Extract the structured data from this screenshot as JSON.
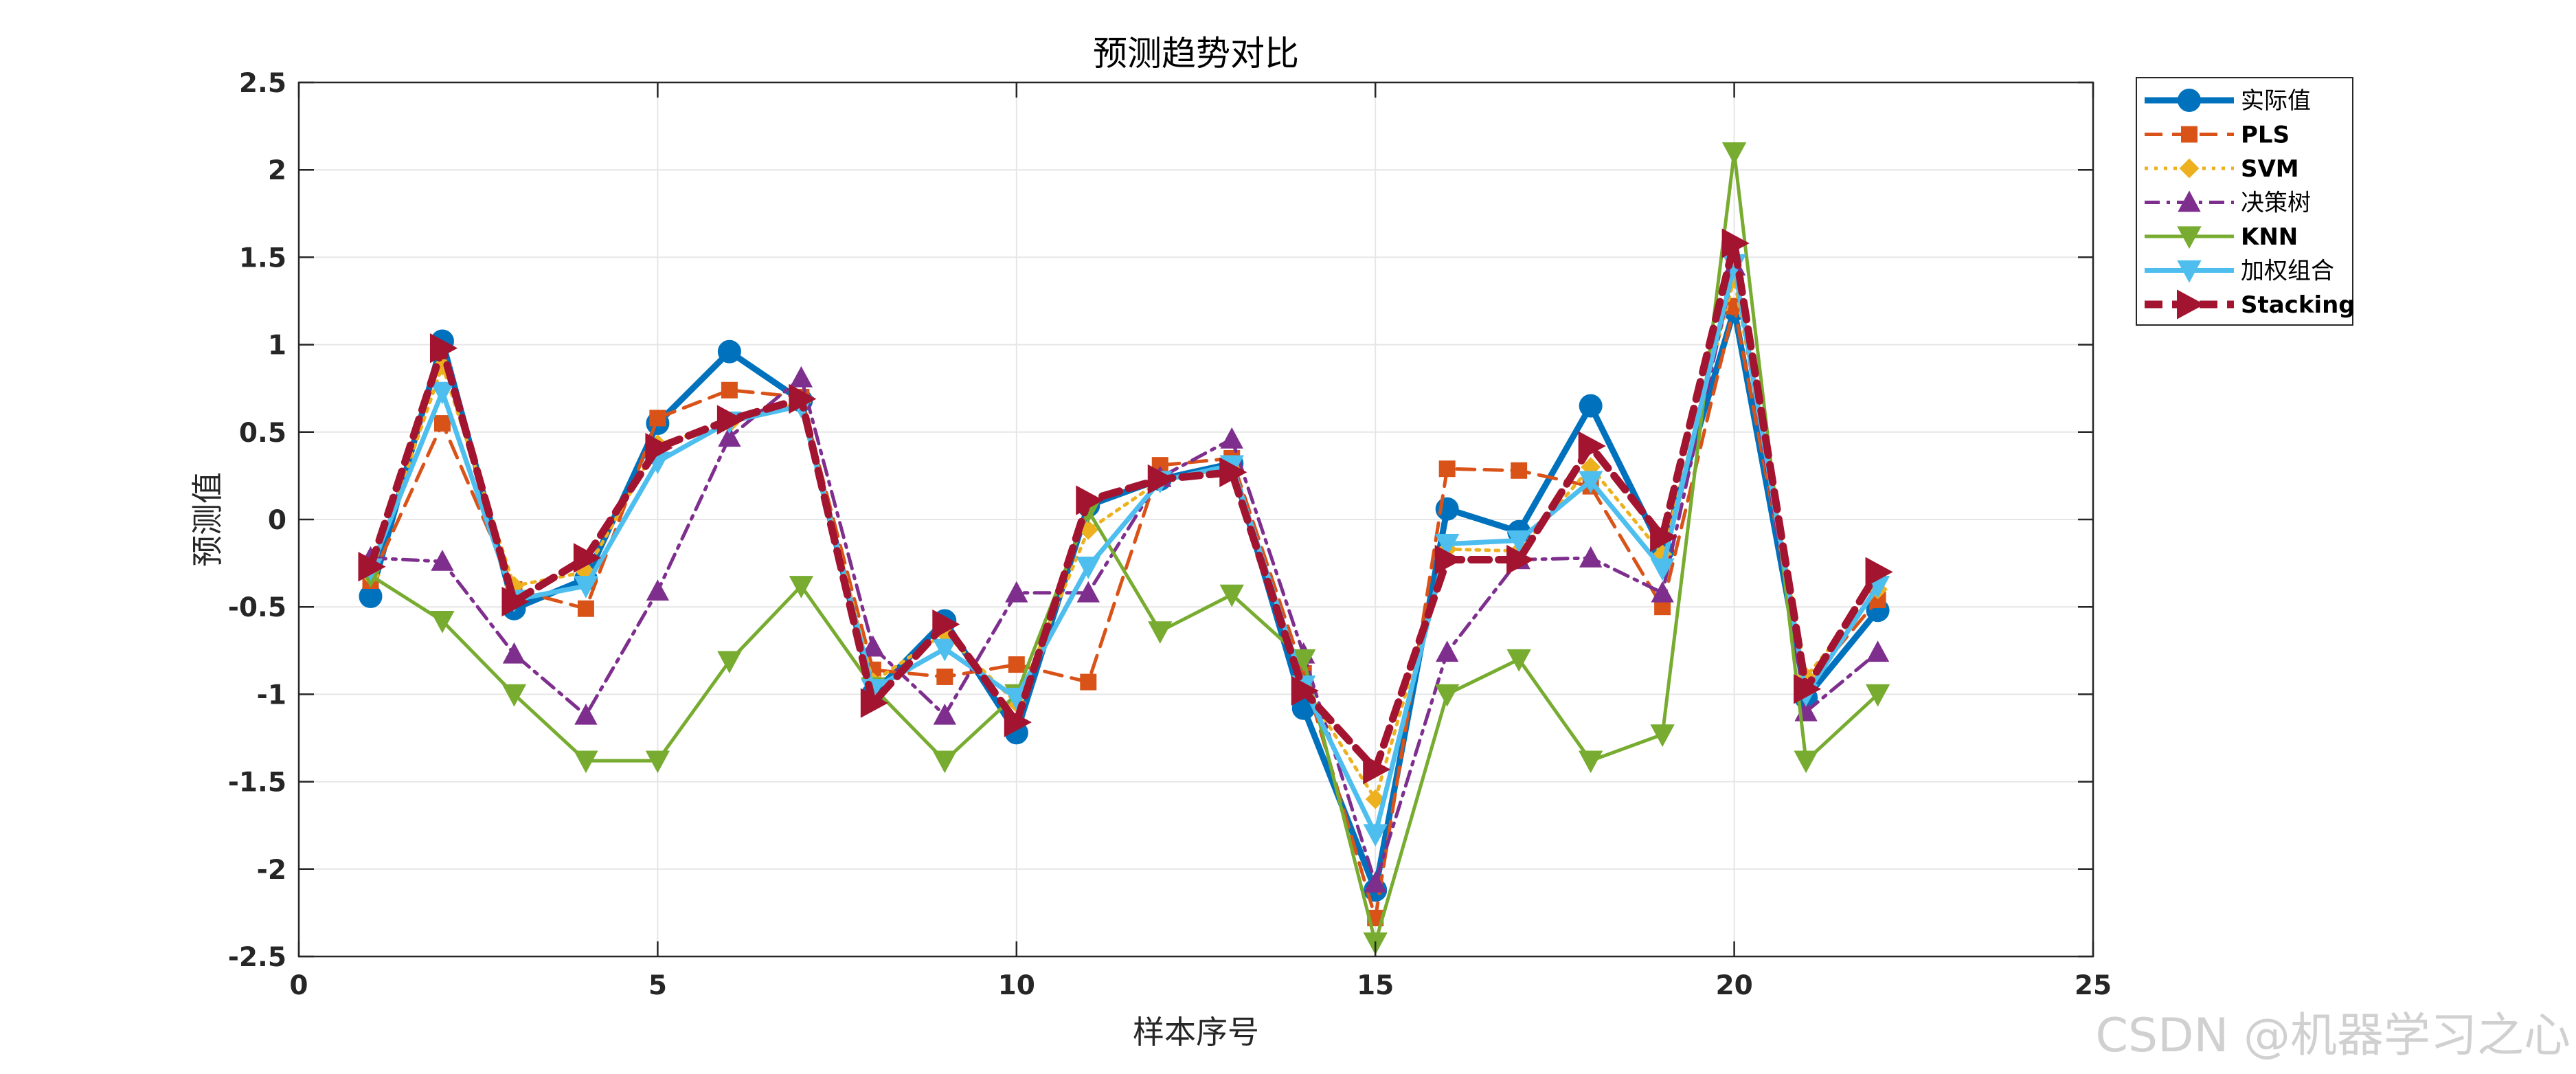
{
  "chart_data": {
    "type": "line",
    "title": "预测趋势对比",
    "xlabel": "样本序号",
    "ylabel": "预测值",
    "xlim": [
      0,
      25
    ],
    "ylim": [
      -2.5,
      2.5
    ],
    "xticks": [
      "0",
      "5",
      "10",
      "15",
      "20",
      "25"
    ],
    "yticks": [
      "2.5",
      "2",
      "1.5",
      "1",
      "0.5",
      "0",
      "-0.5",
      "-1",
      "-1.5",
      "-2",
      "-2.5"
    ],
    "grid": true,
    "legend_position": "outside-top-right",
    "x": [
      1,
      2,
      3,
      4,
      5,
      6,
      7,
      8,
      9,
      10,
      11,
      12,
      13,
      14,
      15,
      16,
      17,
      18,
      19,
      20,
      21,
      22
    ],
    "series": [
      {
        "name": "实际值",
        "color": "#0072BD",
        "marker": "circle",
        "dash": "solid",
        "values": [
          -0.44,
          1.02,
          -0.51,
          -0.34,
          0.55,
          0.96,
          0.68,
          -1.0,
          -0.58,
          -1.22,
          0.08,
          0.23,
          0.32,
          -1.08,
          -2.12,
          0.06,
          -0.07,
          0.65,
          -0.18,
          1.2,
          -1.02,
          -0.52
        ]
      },
      {
        "name": "PLS",
        "color": "#D95319",
        "marker": "square",
        "dash": "dashed",
        "values": [
          -0.35,
          0.55,
          -0.4,
          -0.51,
          0.58,
          0.74,
          0.7,
          -0.86,
          -0.9,
          -0.83,
          -0.93,
          0.31,
          0.35,
          -0.88,
          -2.28,
          0.29,
          0.28,
          0.19,
          -0.5,
          1.22,
          -0.95,
          -0.46
        ]
      },
      {
        "name": "SVM",
        "color": "#EDB120",
        "marker": "diamond",
        "dash": "dotted",
        "values": [
          -0.32,
          0.88,
          -0.38,
          -0.3,
          0.43,
          0.55,
          0.67,
          -0.93,
          -0.65,
          -1.05,
          -0.06,
          0.22,
          0.3,
          -0.95,
          -1.6,
          -0.17,
          -0.18,
          0.3,
          -0.2,
          1.38,
          -0.9,
          -0.4
        ]
      },
      {
        "name": "决策树",
        "color": "#7E2F8E",
        "marker": "triangle-up",
        "dash": "dashdot",
        "values": [
          -0.22,
          -0.24,
          -0.77,
          -1.12,
          -0.41,
          0.47,
          0.81,
          -0.73,
          -1.12,
          -0.42,
          -0.42,
          0.24,
          0.46,
          -0.77,
          -2.08,
          -0.76,
          -0.23,
          -0.22,
          -0.42,
          1.45,
          -1.1,
          -0.76
        ]
      },
      {
        "name": "KNN",
        "color": "#77AC30",
        "marker": "triangle-down",
        "dash": "solid",
        "values": [
          -0.32,
          -0.58,
          -1.0,
          -1.38,
          -1.38,
          -0.81,
          -0.38,
          -0.96,
          -1.38,
          -1.0,
          0.05,
          -0.64,
          -0.43,
          -0.8,
          -2.42,
          -1.0,
          -0.8,
          -1.38,
          -1.23,
          2.1,
          -1.38,
          -1.0
        ]
      },
      {
        "name": "加权组合",
        "color": "#4DBEEE",
        "marker": "triangle-down",
        "dash": "solid",
        "values": [
          -0.28,
          0.73,
          -0.46,
          -0.38,
          0.33,
          0.56,
          0.65,
          -0.97,
          -0.74,
          -1.02,
          -0.27,
          0.22,
          0.31,
          -0.95,
          -1.8,
          -0.14,
          -0.12,
          0.22,
          -0.28,
          1.46,
          -1.0,
          -0.38
        ]
      },
      {
        "name": "Stacking",
        "color": "#A2142F",
        "marker": "triangle-right",
        "dash": "dashed",
        "values": [
          -0.27,
          0.98,
          -0.47,
          -0.22,
          0.41,
          0.57,
          0.69,
          -1.05,
          -0.6,
          -1.16,
          0.11,
          0.23,
          0.27,
          -0.98,
          -1.43,
          -0.23,
          -0.23,
          0.42,
          -0.1,
          1.58,
          -0.97,
          -0.3
        ]
      }
    ]
  },
  "watermark": "CSDN @机器学习之心"
}
